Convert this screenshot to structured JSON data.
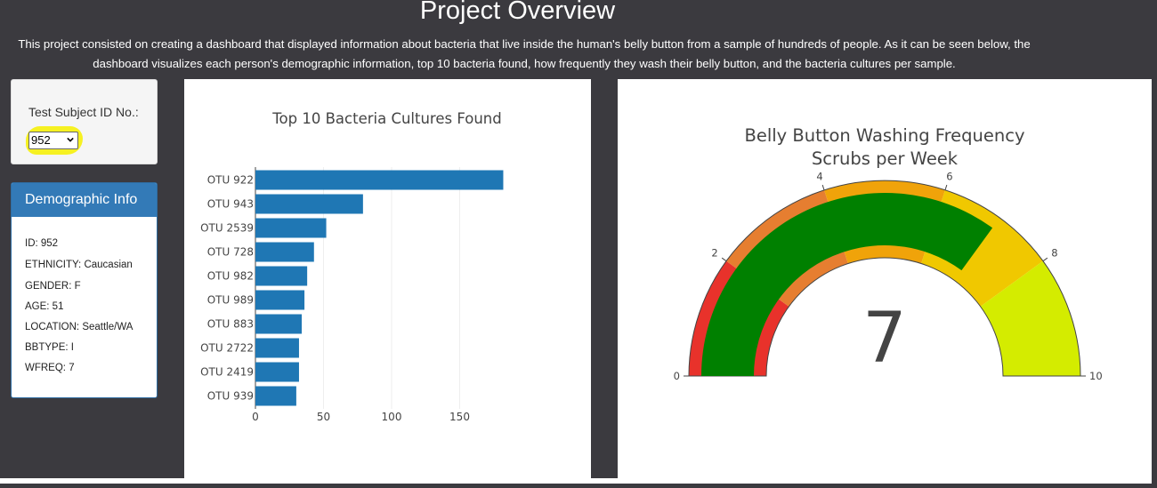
{
  "header": {
    "title": "Project Overview",
    "intro": "This project consisted on creating a dashboard that displayed information about bacteria that live inside the human's belly button from a sample of hundreds of people. As it can be seen below, the dashboard visualizes each person's demographic information, top 10 bacteria found, how frequently they wash their belly button, and the bacteria cultures per sample."
  },
  "selector": {
    "label": "Test Subject ID No.:",
    "selected": "952",
    "highlight_color": "#f6f016"
  },
  "demographics": {
    "title": "Demographic Info",
    "rows": [
      "ID: 952",
      "ETHNICITY: Caucasian",
      "GENDER: F",
      "AGE: 51",
      "LOCATION: Seattle/WA",
      "BBTYPE: I",
      "WFREQ: 7"
    ]
  },
  "chart_data": [
    {
      "type": "bar",
      "orientation": "horizontal",
      "title": "Top 10 Bacteria Cultures Found",
      "categories": [
        "OTU 922",
        "OTU 943",
        "OTU 2539",
        "OTU 728",
        "OTU 982",
        "OTU 989",
        "OTU 883",
        "OTU 2722",
        "OTU 2419",
        "OTU 939"
      ],
      "values": [
        182,
        79,
        52,
        43,
        38,
        36,
        34,
        32,
        32,
        30
      ],
      "xlim": [
        0,
        190
      ],
      "xticks": [
        0,
        50,
        100,
        150
      ],
      "xlabel": "",
      "ylabel": "",
      "grid": true,
      "bar_color": "#1f77b4"
    },
    {
      "type": "gauge",
      "title": "Belly Button Washing Frequency",
      "subtitle": "Scrubs per Week",
      "value": 7,
      "range": [
        0,
        10
      ],
      "ticks": [
        0,
        2,
        4,
        6,
        8,
        10
      ],
      "bar_color": "#008000",
      "steps": [
        {
          "range": [
            0,
            2
          ],
          "color": "#e8322b"
        },
        {
          "range": [
            2,
            4
          ],
          "color": "#e67e30"
        },
        {
          "range": [
            4,
            6
          ],
          "color": "#f0a30a"
        },
        {
          "range": [
            6,
            8
          ],
          "color": "#f0c800"
        },
        {
          "range": [
            8,
            10
          ],
          "color": "#d4ec00"
        }
      ]
    }
  ]
}
